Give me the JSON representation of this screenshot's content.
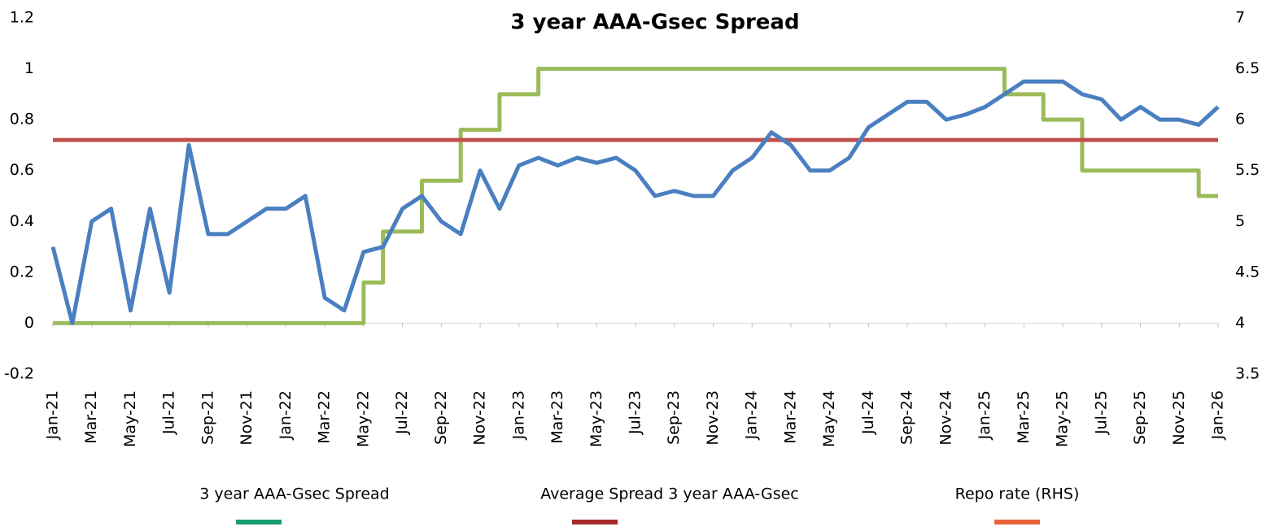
{
  "chart_data": {
    "type": "line",
    "title": "3 year AAA-Gsec Spread",
    "categories": [
      "Jan-21",
      null,
      "Mar-21",
      null,
      "May-21",
      null,
      "Jul-21",
      null,
      "Sep-21",
      null,
      "Nov-21",
      null,
      "Jan-22",
      null,
      "Mar-22",
      null,
      "May-22",
      null,
      "Jul-22",
      null,
      "Sep-22",
      null,
      "Nov-22",
      null,
      "Jan-23",
      null,
      "Mar-23",
      null,
      "May-23",
      null,
      "Jul-23",
      null,
      "Sep-23",
      null,
      "Nov-23",
      null,
      "Jan-24",
      null,
      "Mar-24",
      null,
      "May-24",
      null,
      "Jul-24",
      null,
      "Sep-24",
      null,
      "Nov-24",
      null,
      "Jan-25",
      null,
      "Mar-25",
      null,
      "May-25",
      null,
      "Jul-25",
      null,
      "Sep-25",
      null,
      "Nov-25",
      null,
      "Jan-26"
    ],
    "series": [
      {
        "name": "3 year AAA-Gsec Spread",
        "color": "#4a7fc1",
        "legend_color": "#1a9e6e",
        "values": [
          0.3,
          0.0,
          0.4,
          0.45,
          0.05,
          0.45,
          0.12,
          0.7,
          0.35,
          0.35,
          0.4,
          0.45,
          0.45,
          0.5,
          0.1,
          0.05,
          0.28,
          0.3,
          0.45,
          0.5,
          0.4,
          0.35,
          0.6,
          0.45,
          0.62,
          0.65,
          0.62,
          0.65,
          0.63,
          0.65,
          0.6,
          0.5,
          0.52,
          0.5,
          0.5,
          0.6,
          0.65,
          0.75,
          0.7,
          0.6,
          0.6,
          0.65,
          0.77,
          0.82,
          0.87,
          0.87,
          0.8,
          0.82,
          0.85,
          0.9,
          0.95,
          0.95,
          0.95,
          0.9,
          0.88,
          0.8,
          0.85,
          0.8,
          0.8,
          0.78,
          0.85
        ]
      },
      {
        "name": "Average Spread 3 year AAA-Gsec",
        "color": "#c0504d",
        "legend_color": "#a52a2a",
        "values": [
          0.72,
          0.72,
          0.72,
          0.72,
          0.72,
          0.72,
          0.72,
          0.72,
          0.72,
          0.72,
          0.72,
          0.72,
          0.72,
          0.72,
          0.72,
          0.72,
          0.72,
          0.72,
          0.72,
          0.72,
          0.72,
          0.72,
          0.72,
          0.72,
          0.72,
          0.72,
          0.72,
          0.72,
          0.72,
          0.72,
          0.72,
          0.72,
          0.72,
          0.72,
          0.72,
          0.72,
          0.72,
          0.72,
          0.72,
          0.72,
          0.72,
          0.72,
          0.72,
          0.72,
          0.72,
          0.72,
          0.72,
          0.72,
          0.72,
          0.72,
          0.72,
          0.72,
          0.72,
          0.72,
          0.72,
          0.72,
          0.72,
          0.72,
          0.72,
          0.72,
          0.72
        ]
      },
      {
        "name": "Repo rate (RHS)",
        "color": "#9bbb59",
        "legend_color": "#e8643c",
        "axis": "y2",
        "step": true,
        "values": [
          4,
          4,
          4,
          4,
          4,
          4,
          4,
          4,
          4,
          4,
          4,
          4,
          4,
          4,
          4,
          4,
          4.4,
          4.9,
          4.9,
          5.4,
          5.4,
          5.9,
          5.9,
          6.25,
          6.25,
          6.5,
          6.5,
          6.5,
          6.5,
          6.5,
          6.5,
          6.5,
          6.5,
          6.5,
          6.5,
          6.5,
          6.5,
          6.5,
          6.5,
          6.5,
          6.5,
          6.5,
          6.5,
          6.5,
          6.5,
          6.5,
          6.5,
          6.5,
          6.5,
          6.25,
          6.25,
          6,
          6,
          5.5,
          5.5,
          5.5,
          5.5,
          5.5,
          5.5,
          5.25,
          5.25
        ]
      }
    ],
    "ylim": [
      -0.2,
      1.2
    ],
    "yticks": [
      -0.2,
      0,
      0.2,
      0.4,
      0.6,
      0.8,
      1,
      1.2
    ],
    "y2lim": [
      3.5,
      7
    ],
    "y2ticks": [
      3.5,
      4,
      4.5,
      5,
      5.5,
      6,
      6.5,
      7
    ]
  }
}
